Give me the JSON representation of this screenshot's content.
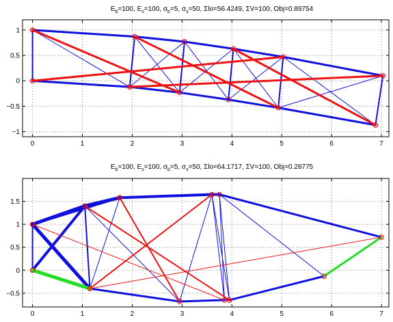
{
  "chart_data": [
    {
      "type": "scatter",
      "title_parts": {
        "eb_base": "E",
        "eb_sub": "b",
        "eb_val": "=100, ",
        "es_base": "E",
        "es_sub": "s",
        "es_val": "=100, ",
        "sb_base": "σ",
        "sb_sub": "b",
        "sb_val": "=5, ",
        "ss_base": "σ",
        "ss_sub": "s",
        "ss_val": "=50, ",
        "rest": "Σlo=56.4249, ΣV=100, Obj=0.89754"
      },
      "xlim": [
        -0.2,
        7.15
      ],
      "ylim": [
        -1.1,
        1.2
      ],
      "xticks": [
        0,
        1,
        2,
        3,
        4,
        5,
        6,
        7
      ],
      "xtick_labels": [
        "0",
        "1",
        "2",
        "3",
        "4",
        "5",
        "6",
        "7"
      ],
      "yticks": [
        -1,
        -0.5,
        0,
        0.5,
        1
      ],
      "ytick_labels": [
        "−1",
        "−0.5",
        "0",
        "0.5",
        "1"
      ],
      "grid": true,
      "nodes": [
        [
          0,
          1
        ],
        [
          0,
          0
        ],
        [
          2.05,
          0.87
        ],
        [
          1.95,
          -0.12
        ],
        [
          3.05,
          0.77
        ],
        [
          2.95,
          -0.23
        ],
        [
          4.03,
          0.63
        ],
        [
          3.93,
          -0.37
        ],
        [
          5.03,
          0.47
        ],
        [
          4.93,
          -0.53
        ],
        [
          7.03,
          0.1
        ],
        [
          6.88,
          -0.87
        ]
      ],
      "members": [
        {
          "a": 0,
          "b": 1,
          "color": "#1010dd",
          "w": 2
        },
        {
          "a": 0,
          "b": 2,
          "color": "#1010dd",
          "w": 3
        },
        {
          "a": 2,
          "b": 4,
          "color": "#1010dd",
          "w": 3
        },
        {
          "a": 4,
          "b": 6,
          "color": "#1010dd",
          "w": 3
        },
        {
          "a": 6,
          "b": 8,
          "color": "#1010dd",
          "w": 3
        },
        {
          "a": 8,
          "b": 10,
          "color": "#1010dd",
          "w": 3
        },
        {
          "a": 1,
          "b": 3,
          "color": "#1010dd",
          "w": 3
        },
        {
          "a": 3,
          "b": 5,
          "color": "#1010dd",
          "w": 3
        },
        {
          "a": 5,
          "b": 7,
          "color": "#1010dd",
          "w": 3
        },
        {
          "a": 7,
          "b": 9,
          "color": "#1010dd",
          "w": 3
        },
        {
          "a": 9,
          "b": 11,
          "color": "#1010dd",
          "w": 3
        },
        {
          "a": 0,
          "b": 3,
          "color": "#1010dd",
          "w": 1
        },
        {
          "a": 2,
          "b": 3,
          "color": "#1010dd",
          "w": 2
        },
        {
          "a": 2,
          "b": 5,
          "color": "#1010dd",
          "w": 1
        },
        {
          "a": 3,
          "b": 4,
          "color": "#1010dd",
          "w": 1
        },
        {
          "a": 4,
          "b": 5,
          "color": "#1010dd",
          "w": 2
        },
        {
          "a": 4,
          "b": 7,
          "color": "#1010dd",
          "w": 1
        },
        {
          "a": 5,
          "b": 6,
          "color": "#1010dd",
          "w": 1
        },
        {
          "a": 6,
          "b": 7,
          "color": "#1010dd",
          "w": 2
        },
        {
          "a": 6,
          "b": 9,
          "color": "#1010dd",
          "w": 1
        },
        {
          "a": 7,
          "b": 8,
          "color": "#1010dd",
          "w": 1
        },
        {
          "a": 8,
          "b": 9,
          "color": "#1010dd",
          "w": 2
        },
        {
          "a": 8,
          "b": 11,
          "color": "#1010dd",
          "w": 1
        },
        {
          "a": 9,
          "b": 10,
          "color": "#1010dd",
          "w": 1
        },
        {
          "a": 10,
          "b": 11,
          "color": "#1010dd",
          "w": 2
        },
        {
          "a": 0,
          "b": 5,
          "color": "#ee1111",
          "w": 3
        },
        {
          "a": 1,
          "b": 8,
          "color": "#ee1111",
          "w": 3
        },
        {
          "a": 2,
          "b": 9,
          "color": "#ee1111",
          "w": 3
        },
        {
          "a": 3,
          "b": 10,
          "color": "#ee1111",
          "w": 3
        },
        {
          "a": 6,
          "b": 11,
          "color": "#ee1111",
          "w": 3
        }
      ]
    },
    {
      "type": "scatter",
      "title_parts": {
        "eb_base": "E",
        "eb_sub": "b",
        "eb_val": "=100, ",
        "es_base": "E",
        "es_sub": "s",
        "es_val": "=100, ",
        "sb_base": "σ",
        "sb_sub": "b",
        "sb_val": "=5, ",
        "ss_base": "σ",
        "ss_sub": "s",
        "ss_val": "=50, ",
        "rest": "Σlo=64.1717, ΣV=100, Obj=0.28775"
      },
      "xlim": [
        -0.2,
        7.15
      ],
      "ylim": [
        -0.8,
        2.0
      ],
      "xticks": [
        0,
        1,
        2,
        3,
        4,
        5,
        6,
        7
      ],
      "xtick_labels": [
        "0",
        "1",
        "2",
        "3",
        "4",
        "5",
        "6",
        "7"
      ],
      "yticks": [
        -0.5,
        0,
        0.5,
        1,
        1.5
      ],
      "ytick_labels": [
        "−0.5",
        "0",
        "0.5",
        "1",
        "1.5"
      ],
      "grid": true,
      "nodes": [
        [
          0,
          1
        ],
        [
          0,
          0
        ],
        [
          1.05,
          1.4
        ],
        [
          1.15,
          -0.4
        ],
        [
          1.75,
          1.58
        ],
        [
          2.95,
          -0.68
        ],
        [
          3.6,
          1.65
        ],
        [
          3.75,
          1.65
        ],
        [
          3.85,
          -0.65
        ],
        [
          3.95,
          -0.65
        ],
        [
          5.85,
          -0.13
        ],
        [
          7.0,
          0.72
        ]
      ],
      "members": [
        {
          "a": 0,
          "b": 2,
          "color": "#1010dd",
          "w": 5
        },
        {
          "a": 2,
          "b": 4,
          "color": "#1010dd",
          "w": 5
        },
        {
          "a": 4,
          "b": 6,
          "color": "#1010dd",
          "w": 4
        },
        {
          "a": 6,
          "b": 7,
          "color": "#1010dd",
          "w": 4
        },
        {
          "a": 7,
          "b": 11,
          "color": "#1010dd",
          "w": 3
        },
        {
          "a": 0,
          "b": 4,
          "color": "#1010dd",
          "w": 3
        },
        {
          "a": 0,
          "b": 3,
          "color": "#1010dd",
          "w": 5
        },
        {
          "a": 1,
          "b": 2,
          "color": "#1010dd",
          "w": 4
        },
        {
          "a": 2,
          "b": 3,
          "color": "#1010dd",
          "w": 2
        },
        {
          "a": 3,
          "b": 5,
          "color": "#1010dd",
          "w": 3
        },
        {
          "a": 5,
          "b": 8,
          "color": "#1010dd",
          "w": 3
        },
        {
          "a": 8,
          "b": 9,
          "color": "#1010dd",
          "w": 2
        },
        {
          "a": 9,
          "b": 10,
          "color": "#1010dd",
          "w": 3
        },
        {
          "a": 0,
          "b": 1,
          "color": "#1010dd",
          "w": 2
        },
        {
          "a": 2,
          "b": 5,
          "color": "#1010dd",
          "w": 1
        },
        {
          "a": 4,
          "b": 3,
          "color": "#1010dd",
          "w": 1
        },
        {
          "a": 4,
          "b": 5,
          "color": "#1010dd",
          "w": 1
        },
        {
          "a": 5,
          "b": 6,
          "color": "#1010dd",
          "w": 1
        },
        {
          "a": 6,
          "b": 8,
          "color": "#1010dd",
          "w": 1
        },
        {
          "a": 7,
          "b": 8,
          "color": "#1010dd",
          "w": 1
        },
        {
          "a": 7,
          "b": 9,
          "color": "#1010dd",
          "w": 1
        },
        {
          "a": 6,
          "b": 9,
          "color": "#1010dd",
          "w": 1
        },
        {
          "a": 7,
          "b": 10,
          "color": "#1010dd",
          "w": 1
        },
        {
          "a": 1,
          "b": 3,
          "color": "#22dd22",
          "w": 5
        },
        {
          "a": 10,
          "b": 11,
          "color": "#22dd22",
          "w": 3
        },
        {
          "a": 3,
          "b": 6,
          "color": "#ee1111",
          "w": 2
        },
        {
          "a": 2,
          "b": 9,
          "color": "#ee1111",
          "w": 2
        },
        {
          "a": 0,
          "b": 8,
          "color": "#ee1111",
          "w": 1
        },
        {
          "a": 4,
          "b": 5,
          "color": "#ee1111",
          "w": 2
        },
        {
          "a": 3,
          "b": 11,
          "color": "#ee1111",
          "w": 1
        }
      ]
    }
  ]
}
